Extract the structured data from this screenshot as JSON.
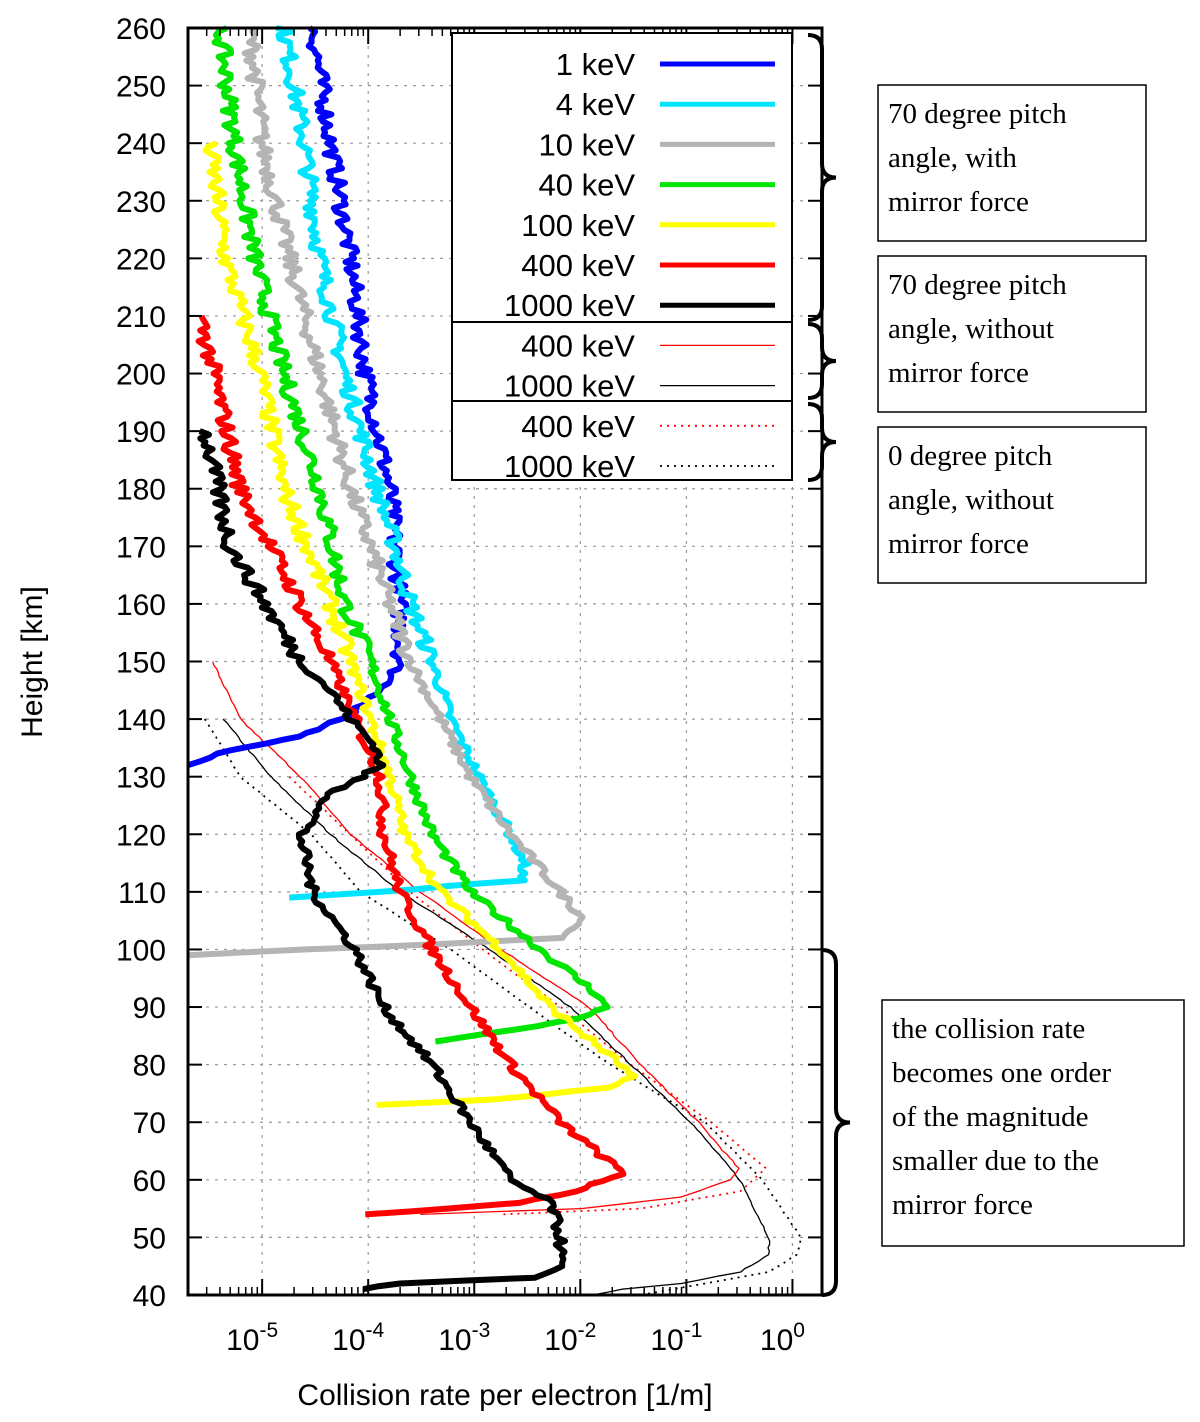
{
  "chart_data": {
    "type": "line",
    "title": "",
    "xlabel": "Collision rate per electron [1/m]",
    "ylabel": "Height [km]",
    "xscale": "log",
    "xlim": [
      2e-06,
      1.9
    ],
    "ylim": [
      40,
      260
    ],
    "grid": true,
    "legend_placement": "top-right",
    "x_ticks": [
      {
        "base": "10",
        "exp": "-5"
      },
      {
        "base": "10",
        "exp": "-4"
      },
      {
        "base": "10",
        "exp": "-3"
      },
      {
        "base": "10",
        "exp": "-2"
      },
      {
        "base": "10",
        "exp": "-1"
      },
      {
        "base": "10",
        "exp": "0"
      }
    ],
    "x_tick_values": [
      1e-05,
      0.0001,
      0.001,
      0.01,
      0.1,
      1
    ],
    "y_ticks": [
      "40",
      "50",
      "60",
      "70",
      "80",
      "90",
      "100",
      "110",
      "120",
      "130",
      "140",
      "150",
      "160",
      "170",
      "180",
      "190",
      "200",
      "210",
      "220",
      "230",
      "240",
      "250",
      "260"
    ],
    "series": [
      {
        "name": "1 keV",
        "color": "#0000ff",
        "style": "thick",
        "group": 0,
        "points": [
          [
            3e-05,
            260
          ],
          [
            4.4e-05,
            240
          ],
          [
            6.8e-05,
            220
          ],
          [
            9.4e-05,
            200
          ],
          [
            0.00016,
            180
          ],
          [
            0.0002,
            160
          ],
          [
            0.0002,
            150
          ],
          [
            0.00014,
            145
          ],
          [
            5.5e-05,
            140
          ],
          [
            2.3e-05,
            137
          ],
          [
            4e-06,
            134
          ],
          [
            2e-06,
            132
          ]
        ]
      },
      {
        "name": "4 keV",
        "color": "#00e5ff",
        "style": "thick",
        "group": 0,
        "points": [
          [
            1.6e-05,
            260
          ],
          [
            2.5e-05,
            240
          ],
          [
            3.5e-05,
            220
          ],
          [
            6e-05,
            200
          ],
          [
            0.00012,
            180
          ],
          [
            0.00018,
            170
          ],
          [
            0.00025,
            160
          ],
          [
            0.0004,
            150
          ],
          [
            0.0006,
            140
          ],
          [
            0.0011,
            130
          ],
          [
            0.0022,
            120
          ],
          [
            0.003,
            115
          ],
          [
            0.0027,
            112
          ],
          [
            0.0006,
            111
          ],
          [
            0.00013,
            110
          ],
          [
            1.8e-05,
            109
          ]
        ]
      },
      {
        "name": "10 keV",
        "color": "#b4b4b4",
        "style": "thick",
        "group": 0,
        "points": [
          [
            7.7e-06,
            260
          ],
          [
            1e-05,
            240
          ],
          [
            1.8e-05,
            220
          ],
          [
            3.5e-05,
            200
          ],
          [
            6.8e-05,
            180
          ],
          [
            0.00016,
            160
          ],
          [
            0.00025,
            150
          ],
          [
            0.00048,
            140
          ],
          [
            0.00092,
            130
          ],
          [
            0.0022,
            120
          ],
          [
            0.0065,
            110
          ],
          [
            0.011,
            105
          ],
          [
            0.0065,
            102
          ],
          [
            0.0006,
            101
          ],
          [
            2.3e-05,
            100
          ],
          [
            2e-06,
            99
          ]
        ]
      },
      {
        "name": "40 keV",
        "color": "#00e600",
        "style": "thick",
        "group": 0,
        "points": [
          [
            4e-06,
            260
          ],
          [
            5.5e-06,
            240
          ],
          [
            8.5e-06,
            220
          ],
          [
            1.6e-05,
            200
          ],
          [
            3.5e-05,
            180
          ],
          [
            6e-05,
            160
          ],
          [
            0.000105,
            150
          ],
          [
            0.00016,
            140
          ],
          [
            0.00025,
            130
          ],
          [
            0.0004,
            120
          ],
          [
            0.00092,
            110
          ],
          [
            0.0042,
            100
          ],
          [
            0.015,
            92
          ],
          [
            0.017,
            90
          ],
          [
            0.01,
            88
          ],
          [
            0.0022,
            86
          ],
          [
            0.00043,
            84
          ]
        ]
      },
      {
        "name": "100 keV",
        "color": "#ffff00",
        "style": "thick",
        "group": 0,
        "points": [
          [
            3.2e-06,
            240
          ],
          [
            4.5e-06,
            220
          ],
          [
            9.6e-06,
            200
          ],
          [
            1.6e-05,
            180
          ],
          [
            4.4e-05,
            160
          ],
          [
            6.8e-05,
            150
          ],
          [
            0.000105,
            140
          ],
          [
            0.00016,
            130
          ],
          [
            0.00022,
            120
          ],
          [
            0.00048,
            110
          ],
          [
            0.0018,
            100
          ],
          [
            0.0052,
            90
          ],
          [
            0.024,
            80
          ],
          [
            0.03,
            78
          ],
          [
            0.017,
            76
          ],
          [
            0.0018,
            74
          ],
          [
            0.00012,
            73
          ]
        ]
      },
      {
        "name": "400 keV",
        "color": "#ff0000",
        "style": "thick",
        "group": 0,
        "points": [
          [
            2.6e-06,
            210
          ],
          [
            3.5e-06,
            200
          ],
          [
            6.2e-06,
            180
          ],
          [
            1.2e-05,
            170
          ],
          [
            2.3e-05,
            160
          ],
          [
            4.4e-05,
            150
          ],
          [
            7.5e-05,
            140
          ],
          [
            0.00013,
            130
          ],
          [
            0.00014,
            120
          ],
          [
            0.0002,
            110
          ],
          [
            0.0004,
            100
          ],
          [
            0.00092,
            90
          ],
          [
            0.0022,
            80
          ],
          [
            0.0065,
            70
          ],
          [
            0.019,
            63
          ],
          [
            0.026,
            61
          ],
          [
            0.0085,
            58
          ],
          [
            0.0026,
            56
          ],
          [
            0.0006,
            55
          ],
          [
            9.4e-05,
            54
          ]
        ]
      },
      {
        "name": "1000 keV",
        "color": "#000000",
        "style": "thick",
        "group": 0,
        "points": [
          [
            2.9e-06,
            190
          ],
          [
            5e-06,
            170
          ],
          [
            1.07e-05,
            160
          ],
          [
            2.3e-05,
            150
          ],
          [
            4.4e-05,
            145
          ],
          [
            6.8e-05,
            140
          ],
          [
            0.00012,
            135
          ],
          [
            0.00013,
            132
          ],
          [
            8.5e-05,
            130
          ],
          [
            4.4e-05,
            127
          ],
          [
            2.9e-05,
            122
          ],
          [
            2.3e-05,
            120
          ],
          [
            3e-05,
            110
          ],
          [
            7.5e-05,
            100
          ],
          [
            0.00014,
            90
          ],
          [
            0.0004,
            80
          ],
          [
            0.00092,
            70
          ],
          [
            0.0022,
            60
          ],
          [
            0.0053,
            56
          ],
          [
            0.0065,
            50
          ],
          [
            0.0065,
            45
          ],
          [
            0.0034,
            43
          ],
          [
            0.0002,
            42
          ],
          [
            9e-05,
            41
          ]
        ]
      },
      {
        "name": "400 keV",
        "color": "#ff0000",
        "style": "thin",
        "group": 1,
        "points": [
          [
            3.4e-06,
            150
          ],
          [
            6.2e-06,
            140
          ],
          [
            2.3e-05,
            130
          ],
          [
            6.8e-05,
            120
          ],
          [
            0.00031,
            110
          ],
          [
            0.0018,
            100
          ],
          [
            0.012,
            90
          ],
          [
            0.037,
            80
          ],
          [
            0.13,
            70
          ],
          [
            0.31,
            62
          ],
          [
            0.26,
            60
          ],
          [
            0.09,
            57
          ],
          [
            0.01,
            55
          ],
          [
            0.00031,
            54
          ]
        ]
      },
      {
        "name": "1000 keV",
        "color": "#000000",
        "style": "thin",
        "group": 1,
        "points": [
          [
            4.3e-06,
            140
          ],
          [
            1.2e-05,
            130
          ],
          [
            4.4e-05,
            120
          ],
          [
            0.0002,
            110
          ],
          [
            0.0014,
            100
          ],
          [
            0.008,
            90
          ],
          [
            0.03,
            80
          ],
          [
            0.11,
            70
          ],
          [
            0.32,
            60
          ],
          [
            0.6,
            50
          ],
          [
            0.6,
            47
          ],
          [
            0.32,
            44
          ],
          [
            0.09,
            42
          ],
          [
            0.025,
            41
          ],
          [
            0.013,
            40
          ]
        ]
      },
      {
        "name": "400 keV",
        "color": "#ff0000",
        "style": "dotted",
        "group": 2,
        "points": [
          [
            1.8e-05,
            130
          ],
          [
            0.00025,
            110
          ],
          [
            0.0012,
            100
          ],
          [
            0.0065,
            90
          ],
          [
            0.03,
            80
          ],
          [
            0.17,
            70
          ],
          [
            0.56,
            62
          ],
          [
            0.32,
            58
          ],
          [
            0.037,
            55
          ],
          [
            0.0018,
            54
          ]
        ]
      },
      {
        "name": "1000 keV",
        "color": "#000000",
        "style": "dotted",
        "group": 2,
        "points": [
          [
            2.9e-06,
            140
          ],
          [
            6.2e-06,
            130
          ],
          [
            2.9e-05,
            120
          ],
          [
            8.5e-05,
            110
          ],
          [
            0.0006,
            100
          ],
          [
            0.0033,
            90
          ],
          [
            0.019,
            80
          ],
          [
            0.15,
            70
          ],
          [
            0.52,
            60
          ],
          [
            1.2,
            50
          ],
          [
            1.1,
            47
          ],
          [
            0.6,
            44
          ],
          [
            0.15,
            42
          ],
          [
            0.037,
            40
          ]
        ]
      }
    ],
    "annotations": [
      {
        "lines": [
          "70 degree pitch",
          "angle, with",
          "mirror force"
        ],
        "brackets": "legend group 1 (thick lines)"
      },
      {
        "lines": [
          "70 degree pitch",
          "angle, without",
          "mirror force"
        ],
        "brackets": "legend group 2 (thin lines)"
      },
      {
        "lines": [
          "0 degree pitch",
          "angle, without",
          "mirror force"
        ],
        "brackets": "legend group 3 (dotted lines)"
      },
      {
        "lines": [
          "the collision rate",
          "becomes one order",
          "of the magnitude",
          "smaller due to the",
          "mirror force"
        ],
        "brackets": "40-100 km"
      }
    ]
  }
}
